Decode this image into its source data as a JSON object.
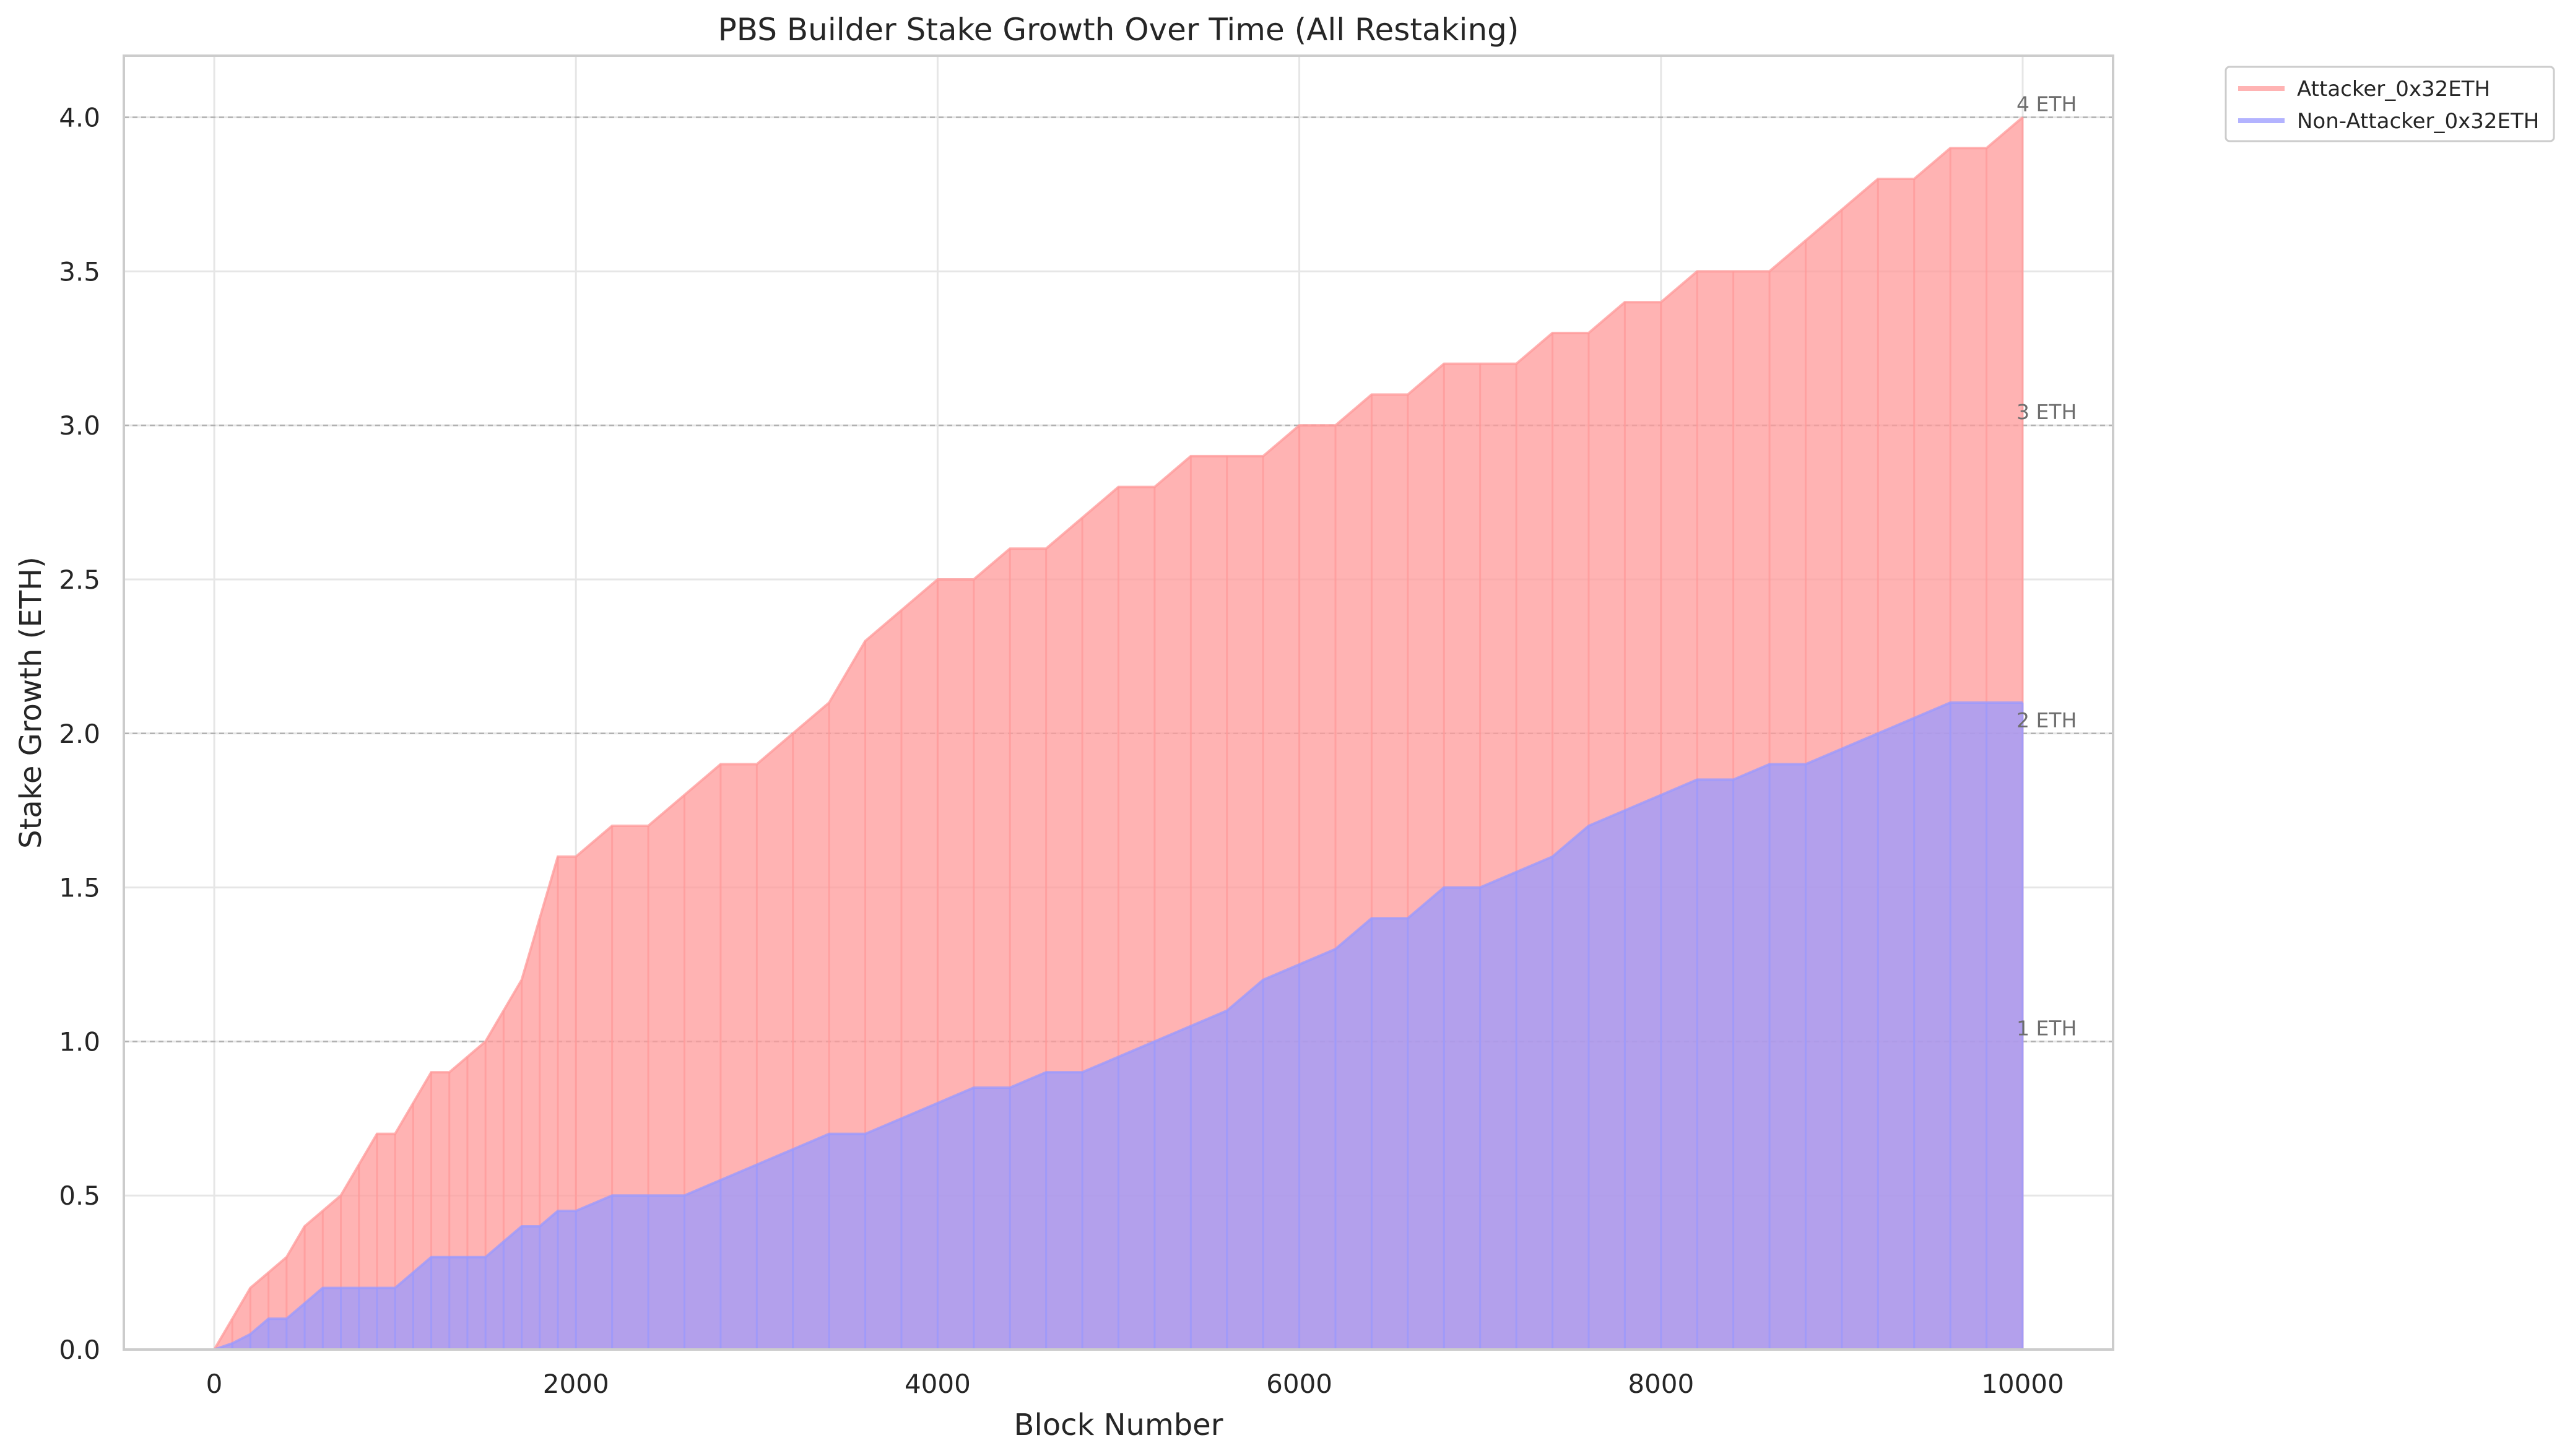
{
  "chart_data": {
    "type": "line",
    "title": "PBS Builder Stake Growth Over Time (All Restaking)",
    "xlabel": "Block Number",
    "ylabel": "Stake Growth (ETH)",
    "xlim": [
      -500,
      10500
    ],
    "ylim": [
      0,
      4.2
    ],
    "xticks": [
      0,
      2000,
      4000,
      6000,
      8000,
      10000
    ],
    "xtick_labels": [
      "0",
      "2000",
      "4000",
      "6000",
      "8000",
      "10000"
    ],
    "yticks": [
      0,
      0.5,
      1,
      1.5,
      2,
      2.5,
      3,
      3.5,
      4
    ],
    "ytick_labels": [
      "0.0",
      "0.5",
      "1.0",
      "1.5",
      "2.0",
      "2.5",
      "3.0",
      "3.5",
      "4.0"
    ],
    "grid": true,
    "legend_position": "outside-top-right",
    "reference_lines": [
      {
        "y": 1,
        "label": "1 ETH"
      },
      {
        "y": 2,
        "label": "2 ETH"
      },
      {
        "y": 3,
        "label": "3 ETH"
      },
      {
        "y": 4,
        "label": "4 ETH"
      }
    ],
    "series": [
      {
        "name": "Attacker_0x32ETH",
        "color": "#ff9999",
        "opacity": 0.75,
        "x": [
          0,
          100,
          200,
          300,
          400,
          500,
          600,
          700,
          800,
          900,
          1000,
          1100,
          1200,
          1300,
          1400,
          1500,
          1600,
          1700,
          1800,
          1900,
          2000,
          2200,
          2400,
          2600,
          2800,
          3000,
          3200,
          3400,
          3600,
          3800,
          4000,
          4200,
          4400,
          4600,
          4800,
          5000,
          5200,
          5400,
          5600,
          5800,
          6000,
          6200,
          6400,
          6600,
          6800,
          7000,
          7200,
          7400,
          7600,
          7800,
          8000,
          8200,
          8400,
          8600,
          8800,
          9000,
          9200,
          9400,
          9600,
          9800,
          10000
        ],
        "upper": [
          0.0,
          0.1,
          0.2,
          0.25,
          0.3,
          0.4,
          0.45,
          0.5,
          0.6,
          0.7,
          0.7,
          0.8,
          0.9,
          0.9,
          0.95,
          1.0,
          1.1,
          1.2,
          1.4,
          1.6,
          1.6,
          1.7,
          1.7,
          1.8,
          1.9,
          1.9,
          2.0,
          2.1,
          2.3,
          2.4,
          2.5,
          2.5,
          2.6,
          2.6,
          2.7,
          2.8,
          2.8,
          2.9,
          2.9,
          2.9,
          3.0,
          3.0,
          3.1,
          3.1,
          3.2,
          3.2,
          3.2,
          3.3,
          3.3,
          3.4,
          3.4,
          3.5,
          3.5,
          3.5,
          3.6,
          3.7,
          3.8,
          3.8,
          3.9,
          3.9,
          4.0
        ],
        "lower": [
          0.0,
          0.0,
          0.0,
          0.0,
          0.0,
          0.0,
          0.0,
          0.0,
          0.0,
          0.0,
          0.0,
          0.0,
          0.0,
          0.0,
          0.0,
          0.0,
          0.0,
          0.0,
          0.0,
          0.0,
          0.0,
          0.0,
          0.0,
          0.0,
          0.0,
          0.0,
          0.0,
          0.0,
          0.0,
          0.0,
          0.0,
          0.0,
          0.0,
          0.0,
          0.0,
          0.0,
          0.0,
          0.0,
          0.0,
          0.0,
          0.0,
          0.0,
          0.0,
          0.0,
          0.0,
          0.0,
          0.0,
          0.0,
          0.0,
          0.0,
          0.0,
          0.0,
          0.0,
          0.0,
          0.0,
          0.0,
          0.0,
          0.0,
          0.0,
          0.0,
          0.0
        ]
      },
      {
        "name": "Non-Attacker_0x32ETH",
        "color": "#9999ff",
        "opacity": 0.75,
        "x": [
          0,
          100,
          200,
          300,
          400,
          500,
          600,
          700,
          800,
          900,
          1000,
          1100,
          1200,
          1300,
          1400,
          1500,
          1600,
          1700,
          1800,
          1900,
          2000,
          2200,
          2400,
          2600,
          2800,
          3000,
          3200,
          3400,
          3600,
          3800,
          4000,
          4200,
          4400,
          4600,
          4800,
          5000,
          5200,
          5400,
          5600,
          5800,
          6000,
          6200,
          6400,
          6600,
          6800,
          7000,
          7200,
          7400,
          7600,
          7800,
          8000,
          8200,
          8400,
          8600,
          8800,
          9000,
          9200,
          9400,
          9600,
          9800,
          10000
        ],
        "upper": [
          0.0,
          0.02,
          0.05,
          0.1,
          0.1,
          0.15,
          0.2,
          0.2,
          0.2,
          0.2,
          0.2,
          0.25,
          0.3,
          0.3,
          0.3,
          0.3,
          0.35,
          0.4,
          0.4,
          0.45,
          0.45,
          0.5,
          0.5,
          0.5,
          0.55,
          0.6,
          0.65,
          0.7,
          0.7,
          0.75,
          0.8,
          0.85,
          0.85,
          0.9,
          0.9,
          0.95,
          1.0,
          1.05,
          1.1,
          1.2,
          1.25,
          1.3,
          1.4,
          1.4,
          1.5,
          1.5,
          1.55,
          1.6,
          1.7,
          1.75,
          1.8,
          1.85,
          1.85,
          1.9,
          1.9,
          1.95,
          2.0,
          2.05,
          2.1,
          2.1,
          2.1
        ],
        "lower": [
          0.0,
          0.0,
          0.0,
          0.0,
          0.0,
          0.0,
          0.0,
          0.0,
          0.0,
          0.0,
          0.0,
          0.0,
          0.0,
          0.0,
          0.0,
          0.0,
          0.0,
          0.0,
          0.0,
          0.0,
          0.0,
          0.0,
          0.0,
          0.0,
          0.0,
          0.0,
          0.0,
          0.0,
          0.0,
          0.0,
          0.0,
          0.0,
          0.0,
          0.0,
          0.0,
          0.0,
          0.0,
          0.0,
          0.0,
          0.0,
          0.0,
          0.0,
          0.0,
          0.0,
          0.0,
          0.0,
          0.0,
          0.0,
          0.0,
          0.0,
          0.0,
          0.0,
          0.0,
          0.0,
          0.0,
          0.0,
          0.0,
          0.0,
          0.0,
          0.0,
          0.0
        ]
      }
    ]
  }
}
